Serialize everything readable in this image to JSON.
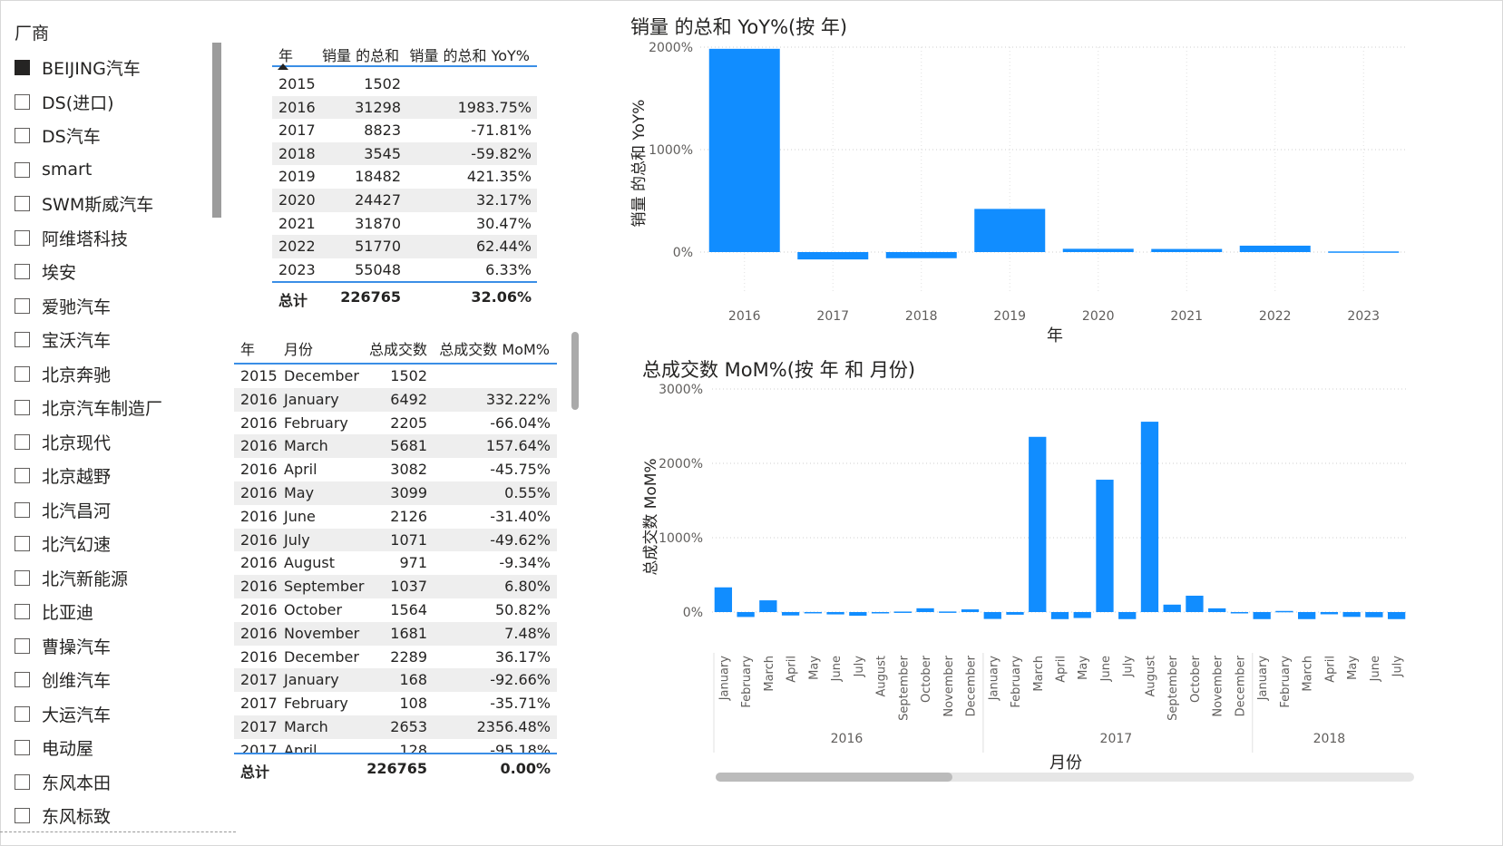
{
  "slicer": {
    "title": "厂商",
    "items": [
      {
        "label": "BEIJING汽车",
        "checked": true
      },
      {
        "label": "DS(进口)",
        "checked": false
      },
      {
        "label": "DS汽车",
        "checked": false
      },
      {
        "label": "smart",
        "checked": false
      },
      {
        "label": "SWM斯威汽车",
        "checked": false
      },
      {
        "label": "阿维塔科技",
        "checked": false
      },
      {
        "label": "埃安",
        "checked": false
      },
      {
        "label": "爱驰汽车",
        "checked": false
      },
      {
        "label": "宝沃汽车",
        "checked": false
      },
      {
        "label": "北京奔驰",
        "checked": false
      },
      {
        "label": "北京汽车制造厂",
        "checked": false
      },
      {
        "label": "北京现代",
        "checked": false
      },
      {
        "label": "北京越野",
        "checked": false
      },
      {
        "label": "北汽昌河",
        "checked": false
      },
      {
        "label": "北汽幻速",
        "checked": false
      },
      {
        "label": "北汽新能源",
        "checked": false
      },
      {
        "label": "比亚迪",
        "checked": false
      },
      {
        "label": "曹操汽车",
        "checked": false
      },
      {
        "label": "创维汽车",
        "checked": false
      },
      {
        "label": "大运汽车",
        "checked": false
      },
      {
        "label": "电动屋",
        "checked": false
      },
      {
        "label": "东风本田",
        "checked": false
      },
      {
        "label": "东风标致",
        "checked": false
      }
    ]
  },
  "table1": {
    "headers": [
      "年",
      "销量 的总和",
      "销量 的总和 YoY%"
    ],
    "rows": [
      [
        "2015",
        "1502",
        ""
      ],
      [
        "2016",
        "31298",
        "1983.75%"
      ],
      [
        "2017",
        "8823",
        "-71.81%"
      ],
      [
        "2018",
        "3545",
        "-59.82%"
      ],
      [
        "2019",
        "18482",
        "421.35%"
      ],
      [
        "2020",
        "24427",
        "32.17%"
      ],
      [
        "2021",
        "31870",
        "30.47%"
      ],
      [
        "2022",
        "51770",
        "62.44%"
      ],
      [
        "2023",
        "55048",
        "6.33%"
      ]
    ],
    "total": [
      "总计",
      "226765",
      "32.06%"
    ]
  },
  "table2": {
    "headers": [
      "年",
      "月份",
      "总成交数",
      "总成交数 MoM%"
    ],
    "rows": [
      [
        "2015",
        "December",
        "1502",
        ""
      ],
      [
        "2016",
        "January",
        "6492",
        "332.22%"
      ],
      [
        "2016",
        "February",
        "2205",
        "-66.04%"
      ],
      [
        "2016",
        "March",
        "5681",
        "157.64%"
      ],
      [
        "2016",
        "April",
        "3082",
        "-45.75%"
      ],
      [
        "2016",
        "May",
        "3099",
        "0.55%"
      ],
      [
        "2016",
        "June",
        "2126",
        "-31.40%"
      ],
      [
        "2016",
        "July",
        "1071",
        "-49.62%"
      ],
      [
        "2016",
        "August",
        "971",
        "-9.34%"
      ],
      [
        "2016",
        "September",
        "1037",
        "6.80%"
      ],
      [
        "2016",
        "October",
        "1564",
        "50.82%"
      ],
      [
        "2016",
        "November",
        "1681",
        "7.48%"
      ],
      [
        "2016",
        "December",
        "2289",
        "36.17%"
      ],
      [
        "2017",
        "January",
        "168",
        "-92.66%"
      ],
      [
        "2017",
        "February",
        "108",
        "-35.71%"
      ],
      [
        "2017",
        "March",
        "2653",
        "2356.48%"
      ],
      [
        "2017",
        "April",
        "128",
        "-95.18%"
      ]
    ],
    "total": [
      "总计",
      "",
      "226765",
      "0.00%"
    ]
  },
  "chart_data": [
    {
      "type": "bar",
      "title": "销量 的总和 YoY%(按 年)",
      "xlabel": "年",
      "ylabel": "销量 的总和 YoY%",
      "categories": [
        "2016",
        "2017",
        "2018",
        "2019",
        "2020",
        "2021",
        "2022",
        "2023"
      ],
      "values": [
        1983.75,
        -71.81,
        -59.82,
        421.35,
        32.17,
        30.47,
        62.44,
        6.33
      ],
      "ylim": [
        -100,
        2000
      ],
      "yticks": [
        "0%",
        "1000%",
        "2000%"
      ],
      "ytick_values": [
        0,
        1000,
        2000
      ],
      "color": "#118DFF",
      "grid": true
    },
    {
      "type": "bar",
      "title": "总成交数 MoM%(按 年 和 月份)",
      "xlabel": "月份",
      "ylabel": "总成交数 MoM%",
      "categories": [
        "January",
        "February",
        "March",
        "April",
        "May",
        "June",
        "July",
        "August",
        "September",
        "October",
        "November",
        "December",
        "January",
        "February",
        "March",
        "April",
        "May",
        "June",
        "July",
        "August",
        "September",
        "October",
        "November",
        "December",
        "January",
        "February",
        "March",
        "April",
        "May",
        "June",
        "July"
      ],
      "groups": [
        {
          "label": "2016",
          "count": 12
        },
        {
          "label": "2017",
          "count": 12
        },
        {
          "label": "2018",
          "count": 7
        }
      ],
      "values": [
        332.22,
        -66.04,
        157.64,
        -45.75,
        0.55,
        -31.4,
        -49.62,
        -9.34,
        6.8,
        50.82,
        7.48,
        36.17,
        -92.66,
        -35.71,
        2356.48,
        -95.18,
        -80,
        1780,
        -95,
        2560,
        100,
        220,
        50,
        -15,
        -95,
        15,
        -95,
        -30,
        -65,
        -70,
        -95
      ],
      "ylim": [
        -200,
        3000
      ],
      "yticks": [
        "0%",
        "1000%",
        "2000%",
        "3000%"
      ],
      "ytick_values": [
        0,
        1000,
        2000,
        3000
      ],
      "color": "#118DFF",
      "grid": true
    }
  ]
}
